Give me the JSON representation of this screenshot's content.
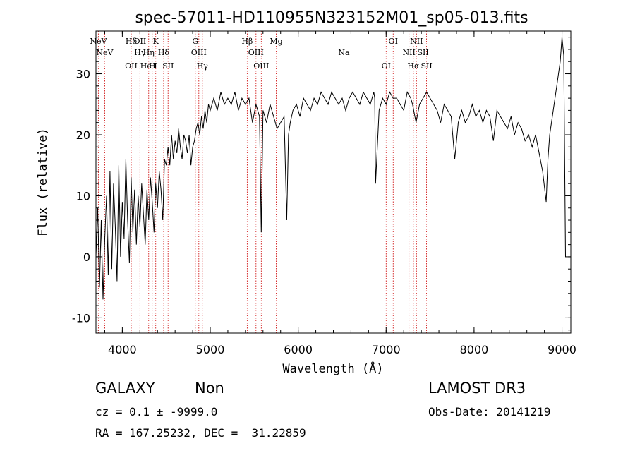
{
  "chart_data": {
    "type": "line",
    "title": "spec-57011-HD110955N323152M01_sp05-013.fits",
    "xlabel": "Wavelength (Å)",
    "ylabel": "Flux (relative)",
    "xlim": [
      3700,
      9100
    ],
    "ylim": [
      -12.5,
      37
    ],
    "xticks": [
      4000,
      5000,
      6000,
      7000,
      8000,
      9000
    ],
    "yticks": [
      -10,
      0,
      10,
      20,
      30
    ],
    "series": [
      {
        "x": [
          3700,
          3720,
          3740,
          3760,
          3780,
          3800,
          3820,
          3840,
          3860,
          3880,
          3900,
          3920,
          3940,
          3960,
          3980,
          4000,
          4020,
          4040,
          4060,
          4080,
          4100,
          4120,
          4140,
          4160,
          4180,
          4200,
          4220,
          4240,
          4260,
          4280,
          4300,
          4320,
          4340,
          4360,
          4380,
          4400,
          4420,
          4440,
          4460,
          4480,
          4500,
          4520,
          4540,
          4560,
          4580,
          4600,
          4620,
          4640,
          4660,
          4680,
          4700,
          4720,
          4740,
          4760,
          4780,
          4800,
          4820,
          4840,
          4860,
          4880,
          4900,
          4920,
          4940,
          4960,
          4980,
          5000,
          5040,
          5080,
          5120,
          5160,
          5200,
          5240,
          5280,
          5320,
          5360,
          5400,
          5440,
          5480,
          5520,
          5560,
          5580,
          5600,
          5640,
          5680,
          5720,
          5760,
          5800,
          5840,
          5870,
          5890,
          5910,
          5940,
          5980,
          6020,
          6060,
          6100,
          6140,
          6180,
          6220,
          6260,
          6300,
          6340,
          6380,
          6420,
          6460,
          6500,
          6540,
          6580,
          6620,
          6660,
          6700,
          6740,
          6780,
          6820,
          6860,
          6870,
          6880,
          6920,
          6960,
          7000,
          7040,
          7080,
          7120,
          7160,
          7200,
          7240,
          7280,
          7300,
          7340,
          7380,
          7420,
          7460,
          7500,
          7540,
          7580,
          7620,
          7660,
          7700,
          7740,
          7780,
          7820,
          7860,
          7900,
          7940,
          7980,
          8020,
          8060,
          8100,
          8140,
          8180,
          8220,
          8260,
          8300,
          8340,
          8380,
          8420,
          8460,
          8500,
          8540,
          8580,
          8620,
          8660,
          8700,
          8740,
          8780,
          8820,
          8840,
          8860,
          8900,
          8940,
          8980,
          9000,
          9020,
          9040
        ],
        "y": [
          0,
          8,
          -5,
          6,
          -7,
          3,
          10,
          -3,
          14,
          -2,
          12,
          5,
          -4,
          15,
          0,
          9,
          3,
          16,
          6,
          -1,
          13,
          4,
          11,
          2,
          10,
          5,
          12,
          7,
          2,
          11,
          6,
          13,
          9,
          4,
          12,
          8,
          14,
          11,
          6,
          16,
          15,
          18,
          15,
          20,
          16,
          19,
          17,
          21,
          18,
          16,
          20,
          19,
          17,
          20,
          15,
          18,
          19,
          21,
          22,
          20,
          23,
          21,
          24,
          22,
          25,
          24,
          26,
          24,
          27,
          25,
          26,
          25,
          27,
          24,
          26,
          25,
          26,
          22,
          25,
          23,
          4,
          24,
          22,
          25,
          23,
          21,
          22,
          23,
          6,
          20,
          22,
          24,
          25,
          23,
          26,
          25,
          24,
          26,
          25,
          27,
          26,
          25,
          27,
          26,
          25,
          26,
          24,
          26,
          27,
          26,
          25,
          27,
          26,
          25,
          27,
          26,
          12,
          24,
          26,
          25,
          27,
          26,
          26,
          25,
          24,
          27,
          26,
          25,
          22,
          25,
          26,
          27,
          26,
          25,
          24,
          22,
          25,
          24,
          23,
          16,
          22,
          24,
          22,
          23,
          25,
          23,
          24,
          22,
          24,
          23,
          19,
          24,
          23,
          22,
          21,
          23,
          20,
          22,
          21,
          19,
          20,
          18,
          20,
          17,
          14,
          9,
          16,
          20,
          24,
          28,
          32,
          36,
          33,
          0
        ]
      }
    ],
    "lines": [
      {
        "x": 3727,
        "labels": [
          "NeV"
        ]
      },
      {
        "x": 3800,
        "labels": [
          "NeV"
        ]
      },
      {
        "x": 4101,
        "labels": [
          "OII",
          "Hδ"
        ]
      },
      {
        "x": 4200,
        "labels": [
          "OII",
          "Hγ"
        ]
      },
      {
        "x": 4300,
        "labels": [
          "Hη",
          "He I"
        ]
      },
      {
        "x": 4340,
        "labels": [
          "H"
        ]
      },
      {
        "x": 4380,
        "labels": [
          "K"
        ]
      },
      {
        "x": 4470,
        "labels": [
          "Hδ"
        ]
      },
      {
        "x": 4520,
        "labels": [
          "SII"
        ]
      },
      {
        "x": 4830,
        "labels": [
          "G"
        ]
      },
      {
        "x": 4870,
        "labels": [
          "OIII"
        ]
      },
      {
        "x": 4910,
        "labels": [
          "Hγ"
        ]
      },
      {
        "x": 5420,
        "labels": [
          "Hβ"
        ]
      },
      {
        "x": 5520,
        "labels": [
          "OIII"
        ]
      },
      {
        "x": 5580,
        "labels": [
          "OIII"
        ]
      },
      {
        "x": 5750,
        "labels": [
          "Mg"
        ]
      },
      {
        "x": 6520,
        "labels": [
          "Na"
        ]
      },
      {
        "x": 7000,
        "labels": [
          "OI"
        ]
      },
      {
        "x": 7080,
        "labels": [
          "OI"
        ]
      },
      {
        "x": 7260,
        "labels": [
          "NII"
        ]
      },
      {
        "x": 7310,
        "labels": [
          "Hα"
        ]
      },
      {
        "x": 7345,
        "labels": [
          "NII"
        ]
      },
      {
        "x": 7420,
        "labels": [
          "SII"
        ]
      },
      {
        "x": 7460,
        "labels": [
          "SII"
        ]
      }
    ]
  },
  "info": {
    "class": "GALAXY",
    "subclass": "Non",
    "survey": "LAMOST DR3",
    "cz": "cz = 0.1 ± -9999.0",
    "obs_date": "Obs-Date: 20141219",
    "coords": "RA = 167.25232, DEC =  31.22859"
  },
  "colors": {
    "line": "#000000",
    "marker": "#cc0000"
  }
}
